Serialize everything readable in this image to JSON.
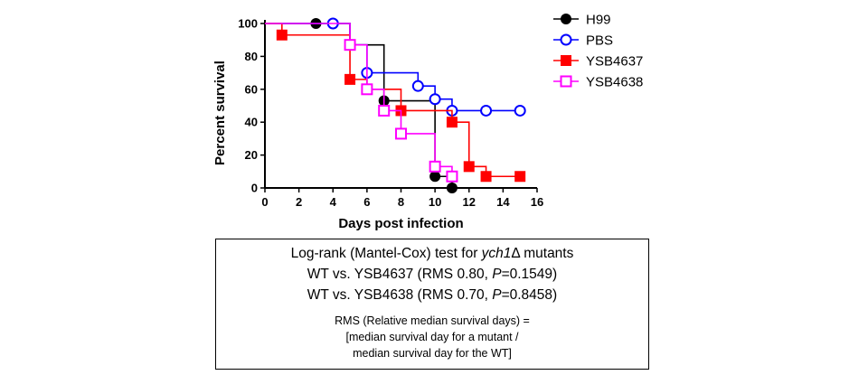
{
  "chart_data": {
    "type": "line",
    "step": true,
    "xlabel": "Days post infection",
    "ylabel": "Percent survival",
    "xlim": [
      0,
      16
    ],
    "ylim": [
      0,
      100
    ],
    "x_ticks": [
      0,
      2,
      4,
      6,
      8,
      10,
      12,
      14,
      16
    ],
    "y_ticks": [
      0,
      20,
      40,
      60,
      80,
      100
    ],
    "grid": false,
    "legend_position": "top-right",
    "series": [
      {
        "name": "H99",
        "color": "#000000",
        "marker": "circle-filled",
        "points": [
          [
            0,
            100
          ],
          [
            3,
            100
          ],
          [
            5,
            87
          ],
          [
            7,
            53
          ],
          [
            10,
            7
          ],
          [
            11,
            0
          ]
        ],
        "markers": [
          [
            3,
            100
          ],
          [
            7,
            53
          ],
          [
            10,
            7
          ],
          [
            11,
            0
          ]
        ]
      },
      {
        "name": "PBS",
        "color": "#0000ff",
        "marker": "circle-open",
        "points": [
          [
            0,
            100
          ],
          [
            4,
            100
          ],
          [
            5,
            87
          ],
          [
            6,
            70
          ],
          [
            9,
            62
          ],
          [
            10,
            54
          ],
          [
            11,
            47
          ],
          [
            15,
            47
          ]
        ],
        "markers": [
          [
            4,
            100
          ],
          [
            6,
            70
          ],
          [
            9,
            62
          ],
          [
            10,
            54
          ],
          [
            11,
            47
          ],
          [
            13,
            47
          ],
          [
            15,
            47
          ]
        ]
      },
      {
        "name": "YSB4637",
        "color": "#ff0000",
        "marker": "square-filled",
        "points": [
          [
            0,
            100
          ],
          [
            1,
            93
          ],
          [
            5,
            66
          ],
          [
            6,
            60
          ],
          [
            8,
            47
          ],
          [
            11,
            40
          ],
          [
            12,
            13
          ],
          [
            13,
            7
          ],
          [
            15,
            7
          ]
        ],
        "markers": [
          [
            1,
            93
          ],
          [
            5,
            66
          ],
          [
            6,
            60
          ],
          [
            8,
            47
          ],
          [
            11,
            40
          ],
          [
            12,
            13
          ],
          [
            13,
            7
          ],
          [
            15,
            7
          ]
        ]
      },
      {
        "name": "YSB4638",
        "color": "#ff00ff",
        "marker": "square-open",
        "points": [
          [
            0,
            100
          ],
          [
            5,
            87
          ],
          [
            6,
            60
          ],
          [
            7,
            47
          ],
          [
            8,
            33
          ],
          [
            10,
            13
          ],
          [
            11,
            7
          ]
        ],
        "markers": [
          [
            5,
            87
          ],
          [
            6,
            60
          ],
          [
            7,
            47
          ],
          [
            8,
            33
          ],
          [
            10,
            13
          ],
          [
            11,
            7
          ]
        ]
      }
    ]
  },
  "stats": {
    "test_title_before": "Log-rank (Mantel-Cox) test for ",
    "test_title_gene": "ych1",
    "test_title_after": "Δ mutants",
    "comparisons": [
      {
        "prefix": "WT vs. YSB4637 (RMS 0.80, ",
        "p_label": "P",
        "p_value": "=0.1549)"
      },
      {
        "prefix": "WT vs. YSB4638 (RMS 0.70, ",
        "p_label": "P",
        "p_value": "=0.8458)"
      }
    ],
    "note_lines": [
      "RMS (Relative median survival days) =",
      "[median survival day for a mutant  /",
      "median survival day for the WT]"
    ]
  }
}
